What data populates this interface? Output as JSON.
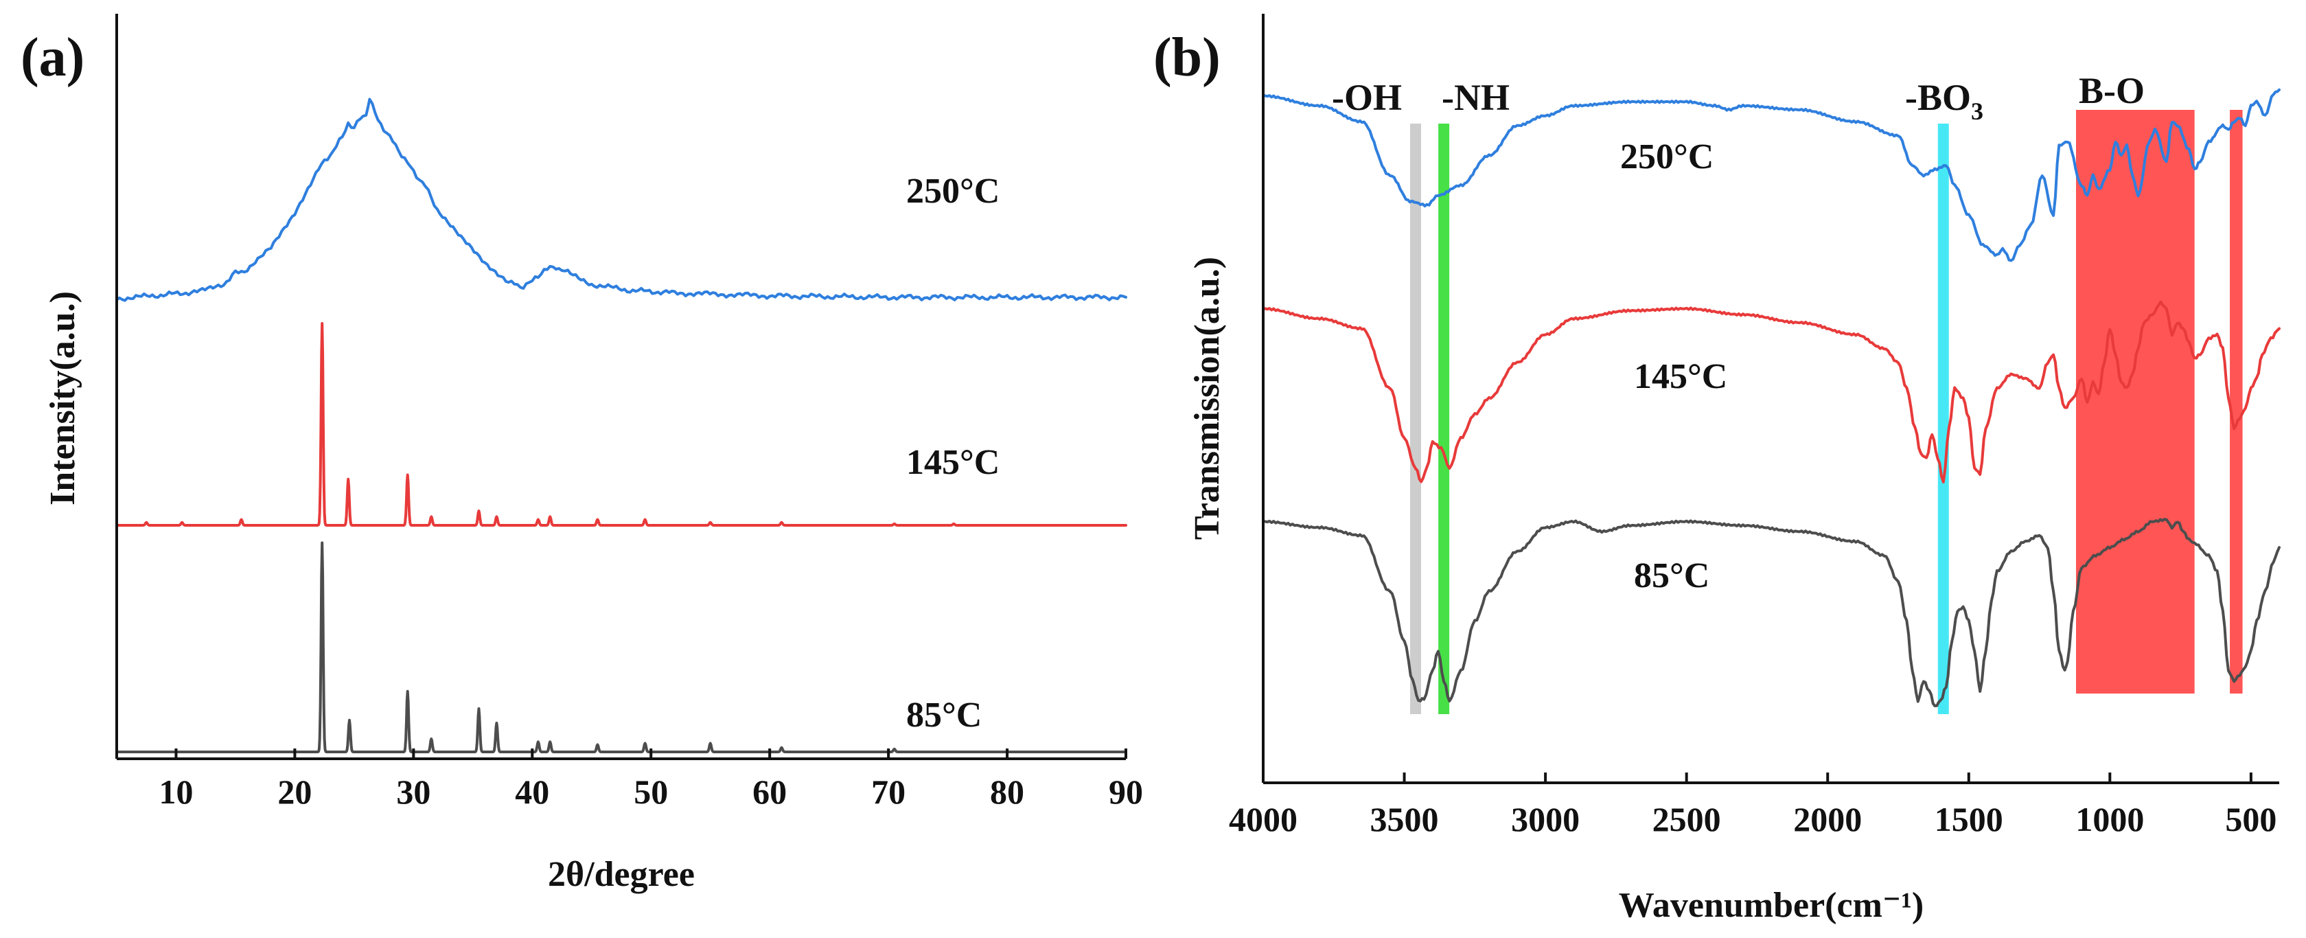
{
  "chart_data": [
    {
      "panel": "(a)",
      "type": "line",
      "title": "",
      "xlabel": "2θ/degree",
      "ylabel": "Intensity(a.u.)",
      "xlim": [
        5,
        90
      ],
      "xticks": [
        10,
        20,
        30,
        40,
        50,
        60,
        70,
        80,
        90
      ],
      "yticks": [],
      "series": [
        {
          "name": "250°C",
          "color": "#2f7fde",
          "offset": 2.0,
          "x": [
            5,
            8,
            12,
            14,
            15,
            16,
            18,
            20,
            22,
            23,
            24,
            24.5,
            25,
            25.5,
            26,
            26.3,
            27,
            28,
            29,
            30,
            31,
            32,
            34,
            36,
            38,
            39,
            40,
            41,
            42,
            43,
            45,
            48,
            52,
            60,
            70,
            80,
            90
          ],
          "values": [
            0.0,
            0.02,
            0.05,
            0.1,
            0.18,
            0.2,
            0.35,
            0.6,
            0.9,
            1.0,
            1.12,
            1.22,
            1.18,
            1.25,
            1.28,
            1.38,
            1.24,
            1.12,
            1.0,
            0.88,
            0.78,
            0.62,
            0.42,
            0.25,
            0.12,
            0.08,
            0.12,
            0.2,
            0.22,
            0.18,
            0.1,
            0.06,
            0.04,
            0.02,
            0.01,
            0.01,
            0.01
          ]
        },
        {
          "name": "145°C",
          "color": "#e83a3a",
          "offset": 1.0,
          "peaks": [
            {
              "x": 7.5,
              "h": 0.02
            },
            {
              "x": 10.5,
              "h": 0.02
            },
            {
              "x": 15.5,
              "h": 0.04
            },
            {
              "x": 22.3,
              "h": 1.4
            },
            {
              "x": 24.5,
              "h": 0.32
            },
            {
              "x": 29.5,
              "h": 0.35
            },
            {
              "x": 31.5,
              "h": 0.06
            },
            {
              "x": 35.5,
              "h": 0.1
            },
            {
              "x": 37,
              "h": 0.06
            },
            {
              "x": 40.5,
              "h": 0.04
            },
            {
              "x": 41.5,
              "h": 0.06
            },
            {
              "x": 45.5,
              "h": 0.04
            },
            {
              "x": 49.5,
              "h": 0.04
            },
            {
              "x": 55,
              "h": 0.02
            },
            {
              "x": 61,
              "h": 0.02
            },
            {
              "x": 70.5,
              "h": 0.01
            },
            {
              "x": 75.5,
              "h": 0.01
            }
          ]
        },
        {
          "name": "85°C",
          "color": "#4d4d4d",
          "offset": 0.0,
          "peaks": [
            {
              "x": 22.3,
              "h": 1.45
            },
            {
              "x": 24.6,
              "h": 0.22
            },
            {
              "x": 29.5,
              "h": 0.42
            },
            {
              "x": 31.5,
              "h": 0.09
            },
            {
              "x": 35.5,
              "h": 0.3
            },
            {
              "x": 37,
              "h": 0.2
            },
            {
              "x": 40.5,
              "h": 0.07
            },
            {
              "x": 41.5,
              "h": 0.07
            },
            {
              "x": 45.5,
              "h": 0.05
            },
            {
              "x": 49.5,
              "h": 0.06
            },
            {
              "x": 55,
              "h": 0.06
            },
            {
              "x": 61,
              "h": 0.03
            },
            {
              "x": 70.5,
              "h": 0.02
            }
          ]
        }
      ],
      "annotations": [
        "250°C",
        "145°C",
        "85°C"
      ]
    },
    {
      "panel": "(b)",
      "type": "line",
      "title": "",
      "xlabel": "Wavenumber(cm⁻¹)",
      "ylabel": "Transmission(a.u.)",
      "xlim": [
        4000,
        400
      ],
      "xticks": [
        4000,
        3500,
        3000,
        2500,
        2000,
        1500,
        1000,
        500
      ],
      "yticks": [],
      "series": [
        {
          "name": "250°C",
          "color": "#2f7fde",
          "offset": 2.0,
          "x": [
            4000,
            3800,
            3650,
            3550,
            3480,
            3420,
            3380,
            3300,
            3200,
            3100,
            3000,
            2900,
            2700,
            2500,
            2400,
            2350,
            2300,
            2100,
            1900,
            1750,
            1700,
            1660,
            1620,
            1580,
            1550,
            1500,
            1450,
            1400,
            1380,
            1350,
            1320,
            1280,
            1240,
            1200,
            1180,
            1150,
            1100,
            1080,
            1060,
            1040,
            1000,
            980,
            960,
            940,
            920,
            900,
            860,
            840,
            800,
            780,
            760,
            720,
            700,
            680,
            650,
            600,
            580,
            560,
            540,
            520,
            500,
            480,
            450,
            420,
            400
          ],
          "values": [
            0.95,
            0.9,
            0.82,
            0.55,
            0.42,
            0.4,
            0.45,
            0.5,
            0.65,
            0.8,
            0.85,
            0.9,
            0.92,
            0.92,
            0.9,
            0.88,
            0.9,
            0.88,
            0.82,
            0.75,
            0.6,
            0.55,
            0.58,
            0.6,
            0.5,
            0.35,
            0.2,
            0.15,
            0.18,
            0.12,
            0.2,
            0.3,
            0.55,
            0.35,
            0.7,
            0.72,
            0.5,
            0.45,
            0.55,
            0.48,
            0.58,
            0.72,
            0.65,
            0.7,
            0.55,
            0.45,
            0.72,
            0.78,
            0.62,
            0.82,
            0.8,
            0.68,
            0.58,
            0.62,
            0.72,
            0.8,
            0.78,
            0.82,
            0.84,
            0.8,
            0.9,
            0.92,
            0.85,
            0.96,
            0.98
          ]
        },
        {
          "name": "145°C",
          "color": "#e83a3a",
          "offset": 1.0,
          "x": [
            4000,
            3800,
            3650,
            3550,
            3500,
            3460,
            3440,
            3420,
            3400,
            3370,
            3340,
            3300,
            3250,
            3200,
            3100,
            3000,
            2900,
            2700,
            2500,
            2300,
            2100,
            1900,
            1800,
            1750,
            1720,
            1690,
            1670,
            1650,
            1630,
            1610,
            1590,
            1570,
            1550,
            1520,
            1500,
            1480,
            1460,
            1440,
            1400,
            1350,
            1300,
            1250,
            1220,
            1200,
            1180,
            1160,
            1130,
            1100,
            1080,
            1060,
            1040,
            1020,
            1000,
            980,
            960,
            940,
            920,
            900,
            880,
            850,
            820,
            800,
            780,
            760,
            740,
            720,
            700,
            680,
            650,
            620,
            600,
            580,
            560,
            540,
            520,
            500,
            480,
            460,
            430,
            400
          ],
          "values": [
            0.95,
            0.9,
            0.85,
            0.55,
            0.3,
            0.15,
            0.08,
            0.15,
            0.28,
            0.25,
            0.15,
            0.3,
            0.42,
            0.5,
            0.68,
            0.82,
            0.9,
            0.94,
            0.95,
            0.92,
            0.88,
            0.82,
            0.75,
            0.68,
            0.55,
            0.35,
            0.22,
            0.2,
            0.32,
            0.2,
            0.08,
            0.35,
            0.55,
            0.5,
            0.4,
            0.15,
            0.12,
            0.35,
            0.55,
            0.62,
            0.6,
            0.55,
            0.68,
            0.72,
            0.55,
            0.45,
            0.5,
            0.6,
            0.48,
            0.58,
            0.52,
            0.68,
            0.85,
            0.72,
            0.58,
            0.55,
            0.62,
            0.75,
            0.88,
            0.92,
            0.98,
            0.95,
            0.82,
            0.88,
            0.85,
            0.78,
            0.7,
            0.72,
            0.8,
            0.82,
            0.75,
            0.5,
            0.35,
            0.4,
            0.45,
            0.55,
            0.6,
            0.72,
            0.8,
            0.85
          ]
        },
        {
          "name": "85°C",
          "color": "#4d4d4d",
          "offset": 0.0,
          "x": [
            4000,
            3800,
            3650,
            3550,
            3500,
            3470,
            3450,
            3430,
            3400,
            3380,
            3360,
            3340,
            3300,
            3250,
            3200,
            3100,
            3000,
            2900,
            2800,
            2700,
            2500,
            2300,
            2100,
            1900,
            1800,
            1750,
            1720,
            1700,
            1680,
            1660,
            1640,
            1620,
            1600,
            1580,
            1560,
            1540,
            1520,
            1500,
            1480,
            1460,
            1440,
            1420,
            1400,
            1350,
            1300,
            1250,
            1220,
            1200,
            1180,
            1160,
            1150,
            1130,
            1100,
            1050,
            1000,
            950,
            900,
            850,
            800,
            780,
            760,
            740,
            720,
            700,
            650,
            620,
            600,
            580,
            560,
            540,
            520,
            500,
            480,
            450,
            420,
            400
          ],
          "values": [
            0.95,
            0.92,
            0.88,
            0.6,
            0.35,
            0.15,
            0.05,
            0.06,
            0.2,
            0.3,
            0.15,
            0.05,
            0.2,
            0.45,
            0.6,
            0.8,
            0.92,
            0.95,
            0.9,
            0.93,
            0.95,
            0.93,
            0.9,
            0.85,
            0.78,
            0.65,
            0.45,
            0.2,
            0.05,
            0.15,
            0.1,
            0.02,
            0.05,
            0.12,
            0.35,
            0.5,
            0.52,
            0.45,
            0.3,
            0.1,
            0.3,
            0.55,
            0.7,
            0.8,
            0.85,
            0.88,
            0.82,
            0.6,
            0.3,
            0.2,
            0.25,
            0.5,
            0.72,
            0.78,
            0.82,
            0.86,
            0.9,
            0.95,
            0.96,
            0.92,
            0.95,
            0.9,
            0.86,
            0.84,
            0.78,
            0.7,
            0.5,
            0.2,
            0.15,
            0.18,
            0.22,
            0.3,
            0.45,
            0.6,
            0.75,
            0.82
          ]
        }
      ],
      "bands": [
        {
          "label": "-OH",
          "center": 3460,
          "color": "#c8c8c8"
        },
        {
          "label": "-NH",
          "center": 3360,
          "color": "#33dd33"
        },
        {
          "label": "-BO",
          "sub": "3",
          "center": 1590,
          "color": "#33e6f5"
        },
        {
          "label": "B-O",
          "from": 1120,
          "to": 700,
          "color": "#ff3030"
        },
        {
          "label": "",
          "from": 575,
          "to": 530,
          "color": "#ff3030"
        }
      ],
      "annotations": [
        "250°C",
        "145°C",
        "85°C"
      ]
    }
  ]
}
